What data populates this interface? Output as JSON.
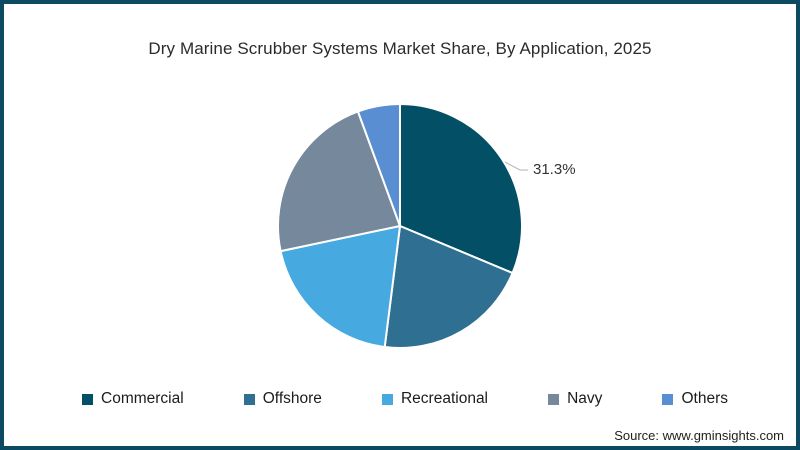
{
  "page": {
    "background": "#ffffff",
    "border_color": "#0b4a63"
  },
  "header": {
    "title": "Dry Marine Scrubber Systems Market Share, By Application, 2025"
  },
  "chart_data": {
    "type": "pie",
    "title": "Dry Marine Scrubber Systems Market Share, By Application, 2025",
    "legend_position": "bottom",
    "start_angle_deg": 0,
    "direction": "clockwise",
    "slices": [
      {
        "label": "Commercial",
        "value": 31.3,
        "color": "#034f66"
      },
      {
        "label": "Offshore",
        "value": 20.7,
        "color": "#2f7092"
      },
      {
        "label": "Recreational",
        "value": 19.7,
        "color": "#46aae1"
      },
      {
        "label": "Navy",
        "value": 22.7,
        "color": "#76889b"
      },
      {
        "label": "Others",
        "value": 5.6,
        "color": "#5a8ed2"
      }
    ],
    "annotation": {
      "text": "31.3%",
      "target_slice": "Commercial"
    }
  },
  "footer": {
    "source": "Source: www.gminsights.com"
  }
}
